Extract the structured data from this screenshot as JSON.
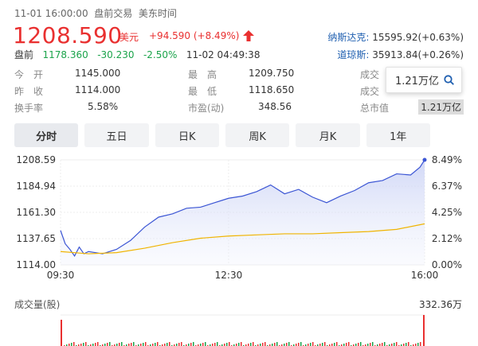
{
  "header": {
    "datetime": "11-01 16:00:00",
    "session": "盘前交易",
    "tz": "美东时间",
    "price": "1208.590",
    "currency": "美元",
    "change": "+94.590",
    "change_pct": "(+8.49%)",
    "premarket_label": "盘前",
    "premarket_price": "1178.360",
    "premarket_change": "-30.230",
    "premarket_pct": "-2.50%",
    "premarket_time": "11-02 04:49:38",
    "colors": {
      "up": "#e93030",
      "down": "#1aa34a",
      "link": "#1f5fb0"
    }
  },
  "indices": [
    {
      "name": "纳斯达克:",
      "value": "15595.92(+0.63%)"
    },
    {
      "name": "道琼斯:",
      "value": "35913.84(+0.26%)"
    }
  ],
  "stats": {
    "open_label": "今　开",
    "open": "1145.000",
    "prev_label": "昨　收",
    "prev": "1114.000",
    "turnover_label": "换手率",
    "turnover": "5.58%",
    "high_label": "最　高",
    "high": "1209.750",
    "low_label": "最　低",
    "low": "1118.650",
    "pe_label": "市盈(动)",
    "pe": "348.56",
    "vol_label": "成交",
    "amt_label": "成交",
    "mcap_label": "总市值",
    "mcap": "1.21万亿"
  },
  "popup": {
    "value": "1.21万亿",
    "icon": "search-icon"
  },
  "tabs": [
    "分时",
    "五日",
    "日K",
    "周K",
    "月K",
    "1年"
  ],
  "chart_data": {
    "type": "area",
    "y_ticks_left": [
      "1208.59",
      "1184.94",
      "1161.30",
      "1137.65",
      "1114.00"
    ],
    "y_ticks_right": [
      "8.49%",
      "6.37%",
      "4.25%",
      "2.12%",
      "0.00%"
    ],
    "x_ticks": [
      "09:30",
      "12:30",
      "16:00"
    ],
    "ylim": [
      1114.0,
      1208.59
    ],
    "series": [
      {
        "color": "#3b55d4",
        "x": [
          "09:30",
          "09:35",
          "09:40",
          "09:45",
          "09:50",
          "09:55",
          "10:00",
          "10:15",
          "10:30",
          "10:45",
          "11:00",
          "11:15",
          "11:30",
          "11:45",
          "12:00",
          "12:15",
          "12:30",
          "12:45",
          "13:00",
          "13:15",
          "13:30",
          "13:45",
          "14:00",
          "14:15",
          "14:30",
          "14:45",
          "15:00",
          "15:15",
          "15:30",
          "15:45",
          "15:55",
          "16:00"
        ],
        "values": [
          1145,
          1133,
          1128,
          1122,
          1130,
          1124,
          1126,
          1124,
          1128,
          1136,
          1148,
          1157,
          1160,
          1165,
          1166,
          1170,
          1174,
          1176,
          1180,
          1186,
          1178,
          1182,
          1175,
          1170,
          1176,
          1181,
          1188,
          1190,
          1196,
          1195,
          1202,
          1208.59
        ]
      },
      {
        "color": "#f0b400",
        "x": [
          "09:30",
          "10:00",
          "10:30",
          "11:00",
          "11:30",
          "12:00",
          "12:30",
          "13:00",
          "13:30",
          "14:00",
          "14:30",
          "15:00",
          "15:30",
          "16:00"
        ],
        "values": [
          1126,
          1124,
          1125,
          1129,
          1134,
          1138,
          1140,
          1141,
          1142,
          1142,
          1143,
          1144,
          1146,
          1151
        ]
      }
    ]
  },
  "volume": {
    "label": "成交量(股)",
    "max_label": "332.36万"
  }
}
